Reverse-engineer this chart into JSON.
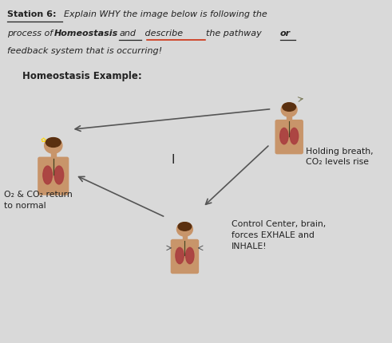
{
  "bg_color": "#dcdcdc",
  "subtitle": "Homeostasis Example:",
  "label_top_right": "Holding breath,\nCO₂ levels rise",
  "label_bottom_right": "Control Center, brain,\nforces EXHALE and\nINHALE!",
  "label_left": "O₂ & CO₂ return\nto normal",
  "center_label": "I",
  "arrow_color": "#555555",
  "text_color": "#222222",
  "figure_bg": "#d9d9d9",
  "skin_color": "#c8956a",
  "hair_color": "#5a3010",
  "lung_color": "#aa4040"
}
